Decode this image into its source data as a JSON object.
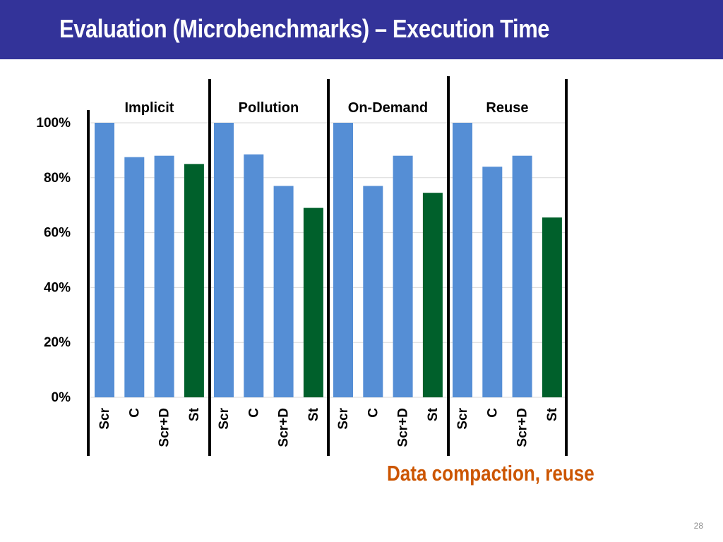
{
  "slide": {
    "title": "Evaluation (Microbenchmarks) – Execution Time",
    "annotation": "Data compaction, reuse",
    "page_number": "28"
  },
  "colors": {
    "title_bar": "#333399",
    "bar_default": "#558ED5",
    "bar_highlight": "#00602B",
    "annotation": "#CC5500"
  },
  "chart_data": {
    "type": "bar",
    "ylim": [
      0,
      100
    ],
    "yticks": [
      0,
      20,
      40,
      60,
      80,
      100
    ],
    "ytick_labels": [
      "0%",
      "20%",
      "40%",
      "60%",
      "80%",
      "100%"
    ],
    "grid": true,
    "highlight_category": "St",
    "groups": [
      {
        "name": "Implicit",
        "categories": [
          "Scr",
          "C",
          "Scr+D",
          "St"
        ],
        "values": [
          100,
          87.5,
          88,
          85
        ]
      },
      {
        "name": "Pollution",
        "categories": [
          "Scr",
          "C",
          "Scr+D",
          "St"
        ],
        "values": [
          100,
          88.5,
          77,
          69
        ]
      },
      {
        "name": "On-Demand",
        "categories": [
          "Scr",
          "C",
          "Scr+D",
          "St"
        ],
        "values": [
          100,
          77,
          88,
          74.5
        ]
      },
      {
        "name": "Reuse",
        "categories": [
          "Scr",
          "C",
          "Scr+D",
          "St"
        ],
        "values": [
          100,
          84,
          88,
          65.5
        ]
      }
    ]
  }
}
